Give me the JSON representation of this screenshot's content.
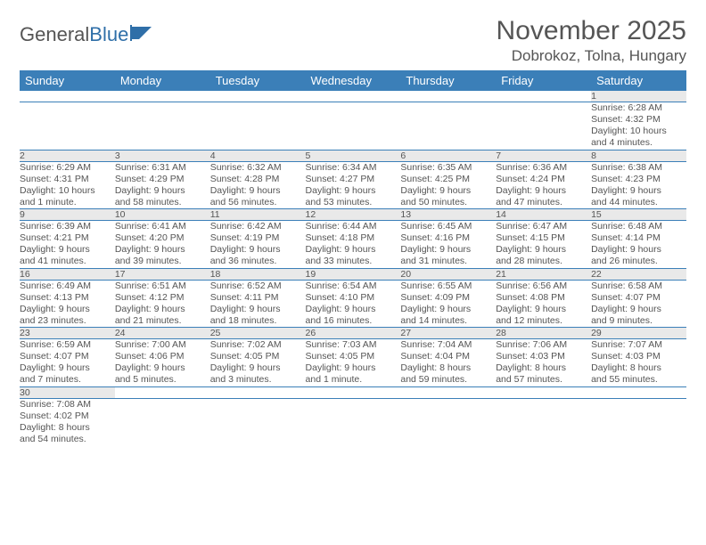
{
  "logo": {
    "part1": "General",
    "part2": "Blue"
  },
  "title": "November 2025",
  "location": "Dobrokoz, Tolna, Hungary",
  "colors": {
    "header_bg": "#3b7fb8",
    "header_fg": "#ffffff",
    "daynum_bg": "#e9e9e9",
    "text": "#555555",
    "rule": "#3b7fb8",
    "page_bg": "#ffffff"
  },
  "typography": {
    "title_fontsize": 30,
    "location_fontsize": 17,
    "header_fontsize": 13,
    "daynum_fontsize": 11.5,
    "cell_fontsize": 10.5
  },
  "weekdays": [
    "Sunday",
    "Monday",
    "Tuesday",
    "Wednesday",
    "Thursday",
    "Friday",
    "Saturday"
  ],
  "weeks": [
    [
      null,
      null,
      null,
      null,
      null,
      null,
      {
        "n": "1",
        "sr": "Sunrise: 6:28 AM",
        "ss": "Sunset: 4:32 PM",
        "d1": "Daylight: 10 hours",
        "d2": "and 4 minutes."
      }
    ],
    [
      {
        "n": "2",
        "sr": "Sunrise: 6:29 AM",
        "ss": "Sunset: 4:31 PM",
        "d1": "Daylight: 10 hours",
        "d2": "and 1 minute."
      },
      {
        "n": "3",
        "sr": "Sunrise: 6:31 AM",
        "ss": "Sunset: 4:29 PM",
        "d1": "Daylight: 9 hours",
        "d2": "and 58 minutes."
      },
      {
        "n": "4",
        "sr": "Sunrise: 6:32 AM",
        "ss": "Sunset: 4:28 PM",
        "d1": "Daylight: 9 hours",
        "d2": "and 56 minutes."
      },
      {
        "n": "5",
        "sr": "Sunrise: 6:34 AM",
        "ss": "Sunset: 4:27 PM",
        "d1": "Daylight: 9 hours",
        "d2": "and 53 minutes."
      },
      {
        "n": "6",
        "sr": "Sunrise: 6:35 AM",
        "ss": "Sunset: 4:25 PM",
        "d1": "Daylight: 9 hours",
        "d2": "and 50 minutes."
      },
      {
        "n": "7",
        "sr": "Sunrise: 6:36 AM",
        "ss": "Sunset: 4:24 PM",
        "d1": "Daylight: 9 hours",
        "d2": "and 47 minutes."
      },
      {
        "n": "8",
        "sr": "Sunrise: 6:38 AM",
        "ss": "Sunset: 4:23 PM",
        "d1": "Daylight: 9 hours",
        "d2": "and 44 minutes."
      }
    ],
    [
      {
        "n": "9",
        "sr": "Sunrise: 6:39 AM",
        "ss": "Sunset: 4:21 PM",
        "d1": "Daylight: 9 hours",
        "d2": "and 41 minutes."
      },
      {
        "n": "10",
        "sr": "Sunrise: 6:41 AM",
        "ss": "Sunset: 4:20 PM",
        "d1": "Daylight: 9 hours",
        "d2": "and 39 minutes."
      },
      {
        "n": "11",
        "sr": "Sunrise: 6:42 AM",
        "ss": "Sunset: 4:19 PM",
        "d1": "Daylight: 9 hours",
        "d2": "and 36 minutes."
      },
      {
        "n": "12",
        "sr": "Sunrise: 6:44 AM",
        "ss": "Sunset: 4:18 PM",
        "d1": "Daylight: 9 hours",
        "d2": "and 33 minutes."
      },
      {
        "n": "13",
        "sr": "Sunrise: 6:45 AM",
        "ss": "Sunset: 4:16 PM",
        "d1": "Daylight: 9 hours",
        "d2": "and 31 minutes."
      },
      {
        "n": "14",
        "sr": "Sunrise: 6:47 AM",
        "ss": "Sunset: 4:15 PM",
        "d1": "Daylight: 9 hours",
        "d2": "and 28 minutes."
      },
      {
        "n": "15",
        "sr": "Sunrise: 6:48 AM",
        "ss": "Sunset: 4:14 PM",
        "d1": "Daylight: 9 hours",
        "d2": "and 26 minutes."
      }
    ],
    [
      {
        "n": "16",
        "sr": "Sunrise: 6:49 AM",
        "ss": "Sunset: 4:13 PM",
        "d1": "Daylight: 9 hours",
        "d2": "and 23 minutes."
      },
      {
        "n": "17",
        "sr": "Sunrise: 6:51 AM",
        "ss": "Sunset: 4:12 PM",
        "d1": "Daylight: 9 hours",
        "d2": "and 21 minutes."
      },
      {
        "n": "18",
        "sr": "Sunrise: 6:52 AM",
        "ss": "Sunset: 4:11 PM",
        "d1": "Daylight: 9 hours",
        "d2": "and 18 minutes."
      },
      {
        "n": "19",
        "sr": "Sunrise: 6:54 AM",
        "ss": "Sunset: 4:10 PM",
        "d1": "Daylight: 9 hours",
        "d2": "and 16 minutes."
      },
      {
        "n": "20",
        "sr": "Sunrise: 6:55 AM",
        "ss": "Sunset: 4:09 PM",
        "d1": "Daylight: 9 hours",
        "d2": "and 14 minutes."
      },
      {
        "n": "21",
        "sr": "Sunrise: 6:56 AM",
        "ss": "Sunset: 4:08 PM",
        "d1": "Daylight: 9 hours",
        "d2": "and 12 minutes."
      },
      {
        "n": "22",
        "sr": "Sunrise: 6:58 AM",
        "ss": "Sunset: 4:07 PM",
        "d1": "Daylight: 9 hours",
        "d2": "and 9 minutes."
      }
    ],
    [
      {
        "n": "23",
        "sr": "Sunrise: 6:59 AM",
        "ss": "Sunset: 4:07 PM",
        "d1": "Daylight: 9 hours",
        "d2": "and 7 minutes."
      },
      {
        "n": "24",
        "sr": "Sunrise: 7:00 AM",
        "ss": "Sunset: 4:06 PM",
        "d1": "Daylight: 9 hours",
        "d2": "and 5 minutes."
      },
      {
        "n": "25",
        "sr": "Sunrise: 7:02 AM",
        "ss": "Sunset: 4:05 PM",
        "d1": "Daylight: 9 hours",
        "d2": "and 3 minutes."
      },
      {
        "n": "26",
        "sr": "Sunrise: 7:03 AM",
        "ss": "Sunset: 4:05 PM",
        "d1": "Daylight: 9 hours",
        "d2": "and 1 minute."
      },
      {
        "n": "27",
        "sr": "Sunrise: 7:04 AM",
        "ss": "Sunset: 4:04 PM",
        "d1": "Daylight: 8 hours",
        "d2": "and 59 minutes."
      },
      {
        "n": "28",
        "sr": "Sunrise: 7:06 AM",
        "ss": "Sunset: 4:03 PM",
        "d1": "Daylight: 8 hours",
        "d2": "and 57 minutes."
      },
      {
        "n": "29",
        "sr": "Sunrise: 7:07 AM",
        "ss": "Sunset: 4:03 PM",
        "d1": "Daylight: 8 hours",
        "d2": "and 55 minutes."
      }
    ],
    [
      {
        "n": "30",
        "sr": "Sunrise: 7:08 AM",
        "ss": "Sunset: 4:02 PM",
        "d1": "Daylight: 8 hours",
        "d2": "and 54 minutes."
      },
      null,
      null,
      null,
      null,
      null,
      null
    ]
  ]
}
